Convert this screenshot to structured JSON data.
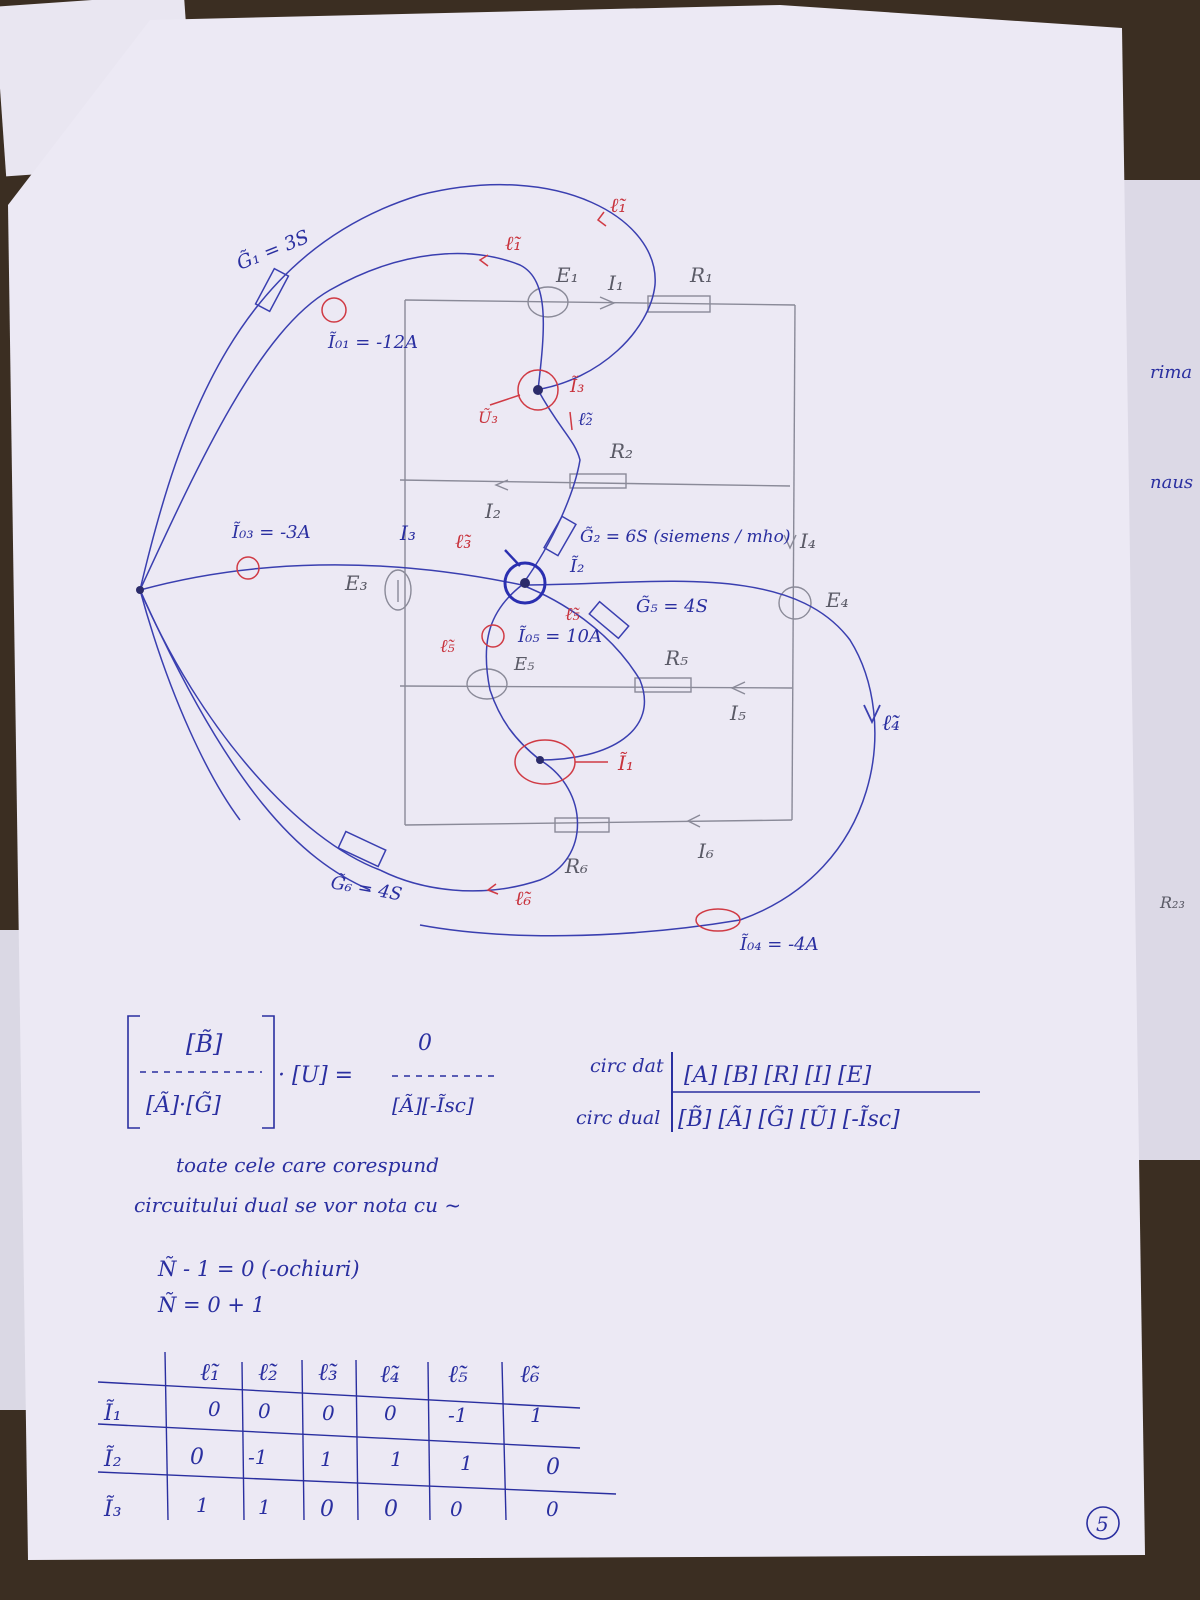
{
  "diagram": {
    "dual_labels": {
      "g1": "G̃₁ = 3S",
      "io1": "Ĩ₀₁ = -12A",
      "io3": "Ĩ₀₃ = -3A",
      "g2": "G̃₂ = 6S (siemens / mho)",
      "i2t": "Ĩ₂",
      "g5": "G̃₅ = 4S",
      "io5": "Ĩ₀₅ = 10A",
      "g6": "G̃₆ = 4S",
      "io4": "Ĩ₀₄ = -4A",
      "l1a": "ℓ̃₁",
      "l1b": "ℓ̃₁",
      "l2": "ℓ̃₂",
      "l3": "ℓ̃₃",
      "l4": "ℓ̃₄",
      "l5a": "ℓ̃₅",
      "l5b": "ℓ̃₅",
      "l6": "ℓ̃₆",
      "i3t": "Ĩ₃",
      "u3": "Ũ₃",
      "i1t": "Ĩ₁"
    },
    "circuit_labels": {
      "e1": "E₁",
      "i1": "I₁",
      "r1": "R₁",
      "r2": "R₂",
      "i2": "I₂",
      "i3": "I₃",
      "i4": "I₄",
      "e3": "E₃",
      "e4": "E₄",
      "e5": "E₅",
      "r5": "R₅",
      "i5": "I₅",
      "r6": "R₆",
      "i6": "I₆"
    }
  },
  "equations": {
    "matrix_top": "[B̃]",
    "matrix_bottom": "[Ã]·[G̃]",
    "times_u": "· [U] =",
    "rhs_top": "0",
    "rhs_bottom": "[Ã][-Ĩsc]",
    "circ_dat_label": "circ dat",
    "circ_dat_values": "[A]  [B]  [R]  [I]  [E]",
    "circ_dual_label": "circ dual",
    "circ_dual_values": "[B̃]  [Ã]  [G̃]  [Ũ]  [-Ĩsc]",
    "note_line1": "toate cele care corespund",
    "note_line2": "circuitului dual se vor nota cu ~",
    "eq1": "Ñ - 1 = 0 (-ochiuri)",
    "eq2": "Ñ = 0 + 1"
  },
  "table": {
    "headers": [
      "",
      "ℓ̃₁",
      "ℓ̃₂",
      "ℓ̃₃",
      "ℓ̃₄",
      "ℓ̃₅",
      "ℓ̃₆"
    ],
    "rows": [
      [
        "Ĩ₁",
        "0",
        "0",
        "0",
        "0",
        "-1",
        "1"
      ],
      [
        "Ĩ₂",
        "0",
        "-1",
        "1",
        "1",
        "1",
        "0"
      ],
      [
        "Ĩ₃",
        "1",
        "1",
        "0",
        "0",
        "0",
        "0"
      ]
    ]
  },
  "page_number": "5",
  "edge_fragments": [
    "rima",
    "naus",
    "R₂₃"
  ]
}
